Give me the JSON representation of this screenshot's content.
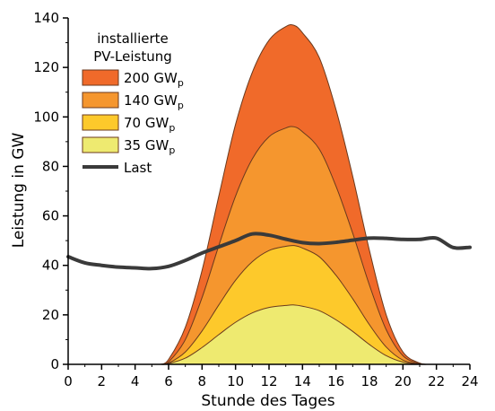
{
  "chart_data": {
    "type": "area",
    "title": "",
    "xlabel": "Stunde des Tages",
    "ylabel": "Leistung in GW",
    "xlim": [
      0,
      24
    ],
    "ylim": [
      0,
      140
    ],
    "x_ticks": [
      0,
      2,
      4,
      6,
      8,
      10,
      12,
      14,
      16,
      18,
      20,
      22,
      24
    ],
    "y_ticks": [
      0,
      20,
      40,
      60,
      80,
      100,
      120,
      140
    ],
    "grid": false,
    "legend": {
      "title_line1": "installierte",
      "title_line2": "PV-Leistung",
      "position": "top-left"
    },
    "series": [
      {
        "name": "200 GW",
        "subscript": "p",
        "color": "#f06a2a",
        "x": [
          5.5,
          6,
          7,
          8,
          9,
          10,
          11,
          12,
          13,
          13.5,
          14,
          15,
          16,
          17,
          18,
          19,
          20,
          21,
          21.5
        ],
        "values": [
          0,
          2,
          15,
          38,
          68,
          97,
          118,
          131,
          136.5,
          137,
          134,
          124,
          103,
          76,
          46,
          20,
          5,
          0.5,
          0
        ]
      },
      {
        "name": "140 GW",
        "subscript": "p",
        "color": "#f5962e",
        "x": [
          5.5,
          6,
          7,
          8,
          9,
          10,
          11,
          12,
          13,
          13.5,
          14,
          15,
          16,
          17,
          18,
          19,
          20,
          21,
          21.5
        ],
        "values": [
          0,
          1,
          10,
          27,
          48,
          68,
          83,
          92,
          95.5,
          96,
          94,
          87,
          72,
          53,
          32,
          14,
          3.5,
          0.3,
          0
        ]
      },
      {
        "name": "70 GW",
        "subscript": "p",
        "color": "#fdc92b",
        "x": [
          5.5,
          6,
          7,
          8,
          9,
          10,
          11,
          12,
          13,
          13.5,
          14,
          15,
          16,
          17,
          18,
          19,
          20,
          21,
          21.5
        ],
        "values": [
          0,
          0.5,
          5,
          13.5,
          24,
          34,
          41.5,
          46,
          47.7,
          48,
          47,
          43.5,
          36,
          26.5,
          16,
          7,
          1.7,
          0.2,
          0
        ]
      },
      {
        "name": "35 GW",
        "subscript": "p",
        "color": "#eeea70",
        "x": [
          5.5,
          6,
          7,
          8,
          9,
          10,
          11,
          12,
          13,
          13.5,
          14,
          15,
          16,
          17,
          18,
          19,
          20,
          21,
          21.5
        ],
        "values": [
          0,
          0.3,
          2.5,
          6.8,
          12,
          17,
          20.8,
          23,
          23.8,
          24,
          23.5,
          21.7,
          18,
          13.3,
          8,
          3.5,
          0.9,
          0.1,
          0
        ]
      },
      {
        "name": "Last",
        "color": "#3a3a3a",
        "x": [
          0,
          1,
          2,
          3,
          4,
          5,
          6,
          7,
          8,
          9,
          10,
          11,
          12,
          13,
          14,
          15,
          16,
          17,
          18,
          19,
          20,
          21,
          22,
          23,
          24
        ],
        "values": [
          43.5,
          41,
          40,
          39.3,
          39,
          38.7,
          39.6,
          42,
          45,
          47.5,
          50,
          52.7,
          52.2,
          50.6,
          49.2,
          48.8,
          49.3,
          50.2,
          51,
          50.9,
          50.5,
          50.5,
          51,
          47.2,
          47.3
        ]
      }
    ]
  }
}
